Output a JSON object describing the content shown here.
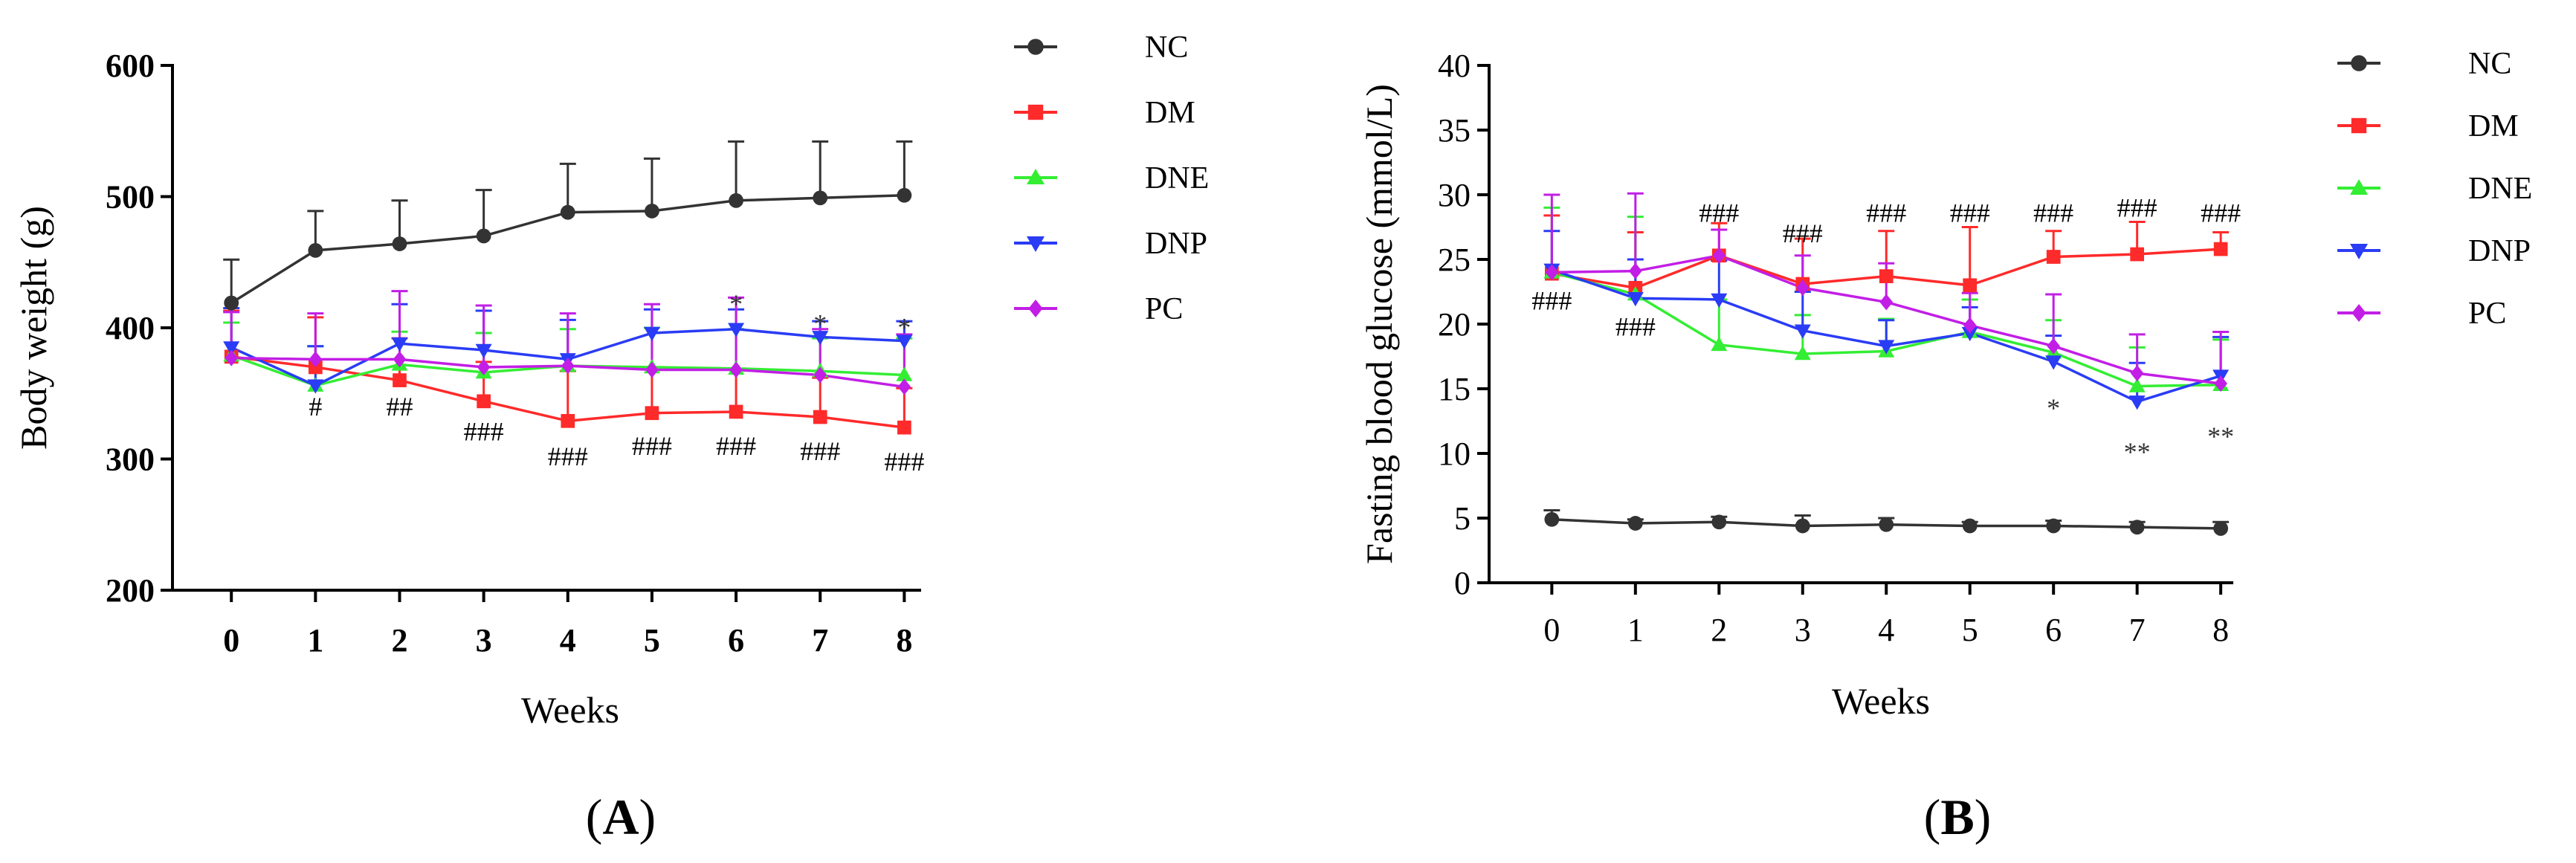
{
  "colors": {
    "NC": "#333333",
    "DM": "#ff2a2a",
    "DNE": "#33ee33",
    "DNP": "#2a3cf5",
    "PC": "#c21ee6"
  },
  "markers": {
    "NC": "circle",
    "DM": "square",
    "DNE": "triangle-up",
    "DNP": "triangle-down",
    "PC": "diamond"
  },
  "panels": {
    "A": {
      "prefix": "(",
      "letter": "A",
      "suffix": ")"
    },
    "B": {
      "prefix": "(",
      "letter": "B",
      "suffix": ")"
    }
  },
  "chart_data": [
    {
      "id": "A",
      "type": "line",
      "title": "",
      "xlabel": "Weeks",
      "ylabel": "Body weight (g)",
      "x": [
        0,
        1,
        2,
        3,
        4,
        5,
        6,
        7,
        8
      ],
      "xlim": [
        -0.7,
        8.2
      ],
      "ylim": [
        200,
        600
      ],
      "yticks": [
        200,
        300,
        400,
        500,
        600
      ],
      "legend": [
        "NC",
        "DM",
        "DNE",
        "DNP",
        "PC"
      ],
      "legend_position": "right",
      "series": [
        {
          "name": "NC",
          "values": [
            419,
            459,
            464,
            470,
            488,
            489,
            497,
            499,
            501
          ],
          "error": [
            33,
            30,
            33,
            35,
            37,
            40,
            45,
            43,
            41
          ]
        },
        {
          "name": "DM",
          "values": [
            378,
            370,
            360,
            344,
            329,
            335,
            336,
            332,
            324
          ],
          "error": [
            35,
            38,
            32,
            30,
            38,
            35,
            32,
            30,
            30
          ]
        },
        {
          "name": "DNE",
          "values": [
            379,
            356,
            372,
            366,
            371,
            370,
            369,
            367,
            364
          ],
          "error": [
            25,
            30,
            25,
            30,
            28,
            30,
            30,
            25,
            28
          ]
        },
        {
          "name": "DNP",
          "values": [
            385,
            356,
            388,
            383,
            376,
            396,
            399,
            393,
            390
          ],
          "error": [
            30,
            30,
            30,
            30,
            30,
            18,
            15,
            12,
            15
          ]
        },
        {
          "name": "PC",
          "values": [
            377,
            376,
            376,
            370,
            371,
            368,
            368,
            364,
            355
          ],
          "error": [
            35,
            35,
            52,
            47,
            40,
            50,
            55,
            35,
            40
          ]
        }
      ],
      "annotations": [
        {
          "x": 1,
          "y": 340,
          "text": "#"
        },
        {
          "x": 2,
          "y": 340,
          "text": "##"
        },
        {
          "x": 3,
          "y": 321,
          "text": "###"
        },
        {
          "x": 4,
          "y": 302,
          "text": "###"
        },
        {
          "x": 5,
          "y": 310,
          "text": "###"
        },
        {
          "x": 6,
          "y": 310,
          "text": "###"
        },
        {
          "x": 7,
          "y": 306,
          "text": "###"
        },
        {
          "x": 8,
          "y": 298,
          "text": "###"
        },
        {
          "x": 6,
          "y": 425,
          "text": "*"
        },
        {
          "x": 7,
          "y": 410,
          "text": "*"
        },
        {
          "x": 8,
          "y": 407,
          "text": "*"
        }
      ]
    },
    {
      "id": "B",
      "type": "line",
      "title": "",
      "xlabel": "Weeks",
      "ylabel": "Fasting blood glucose (mmol/L)",
      "x": [
        0,
        1,
        2,
        3,
        4,
        5,
        6,
        7,
        8
      ],
      "xlim": [
        -0.75,
        8.15
      ],
      "ylim": [
        0,
        40
      ],
      "yticks": [
        0,
        5,
        10,
        15,
        20,
        25,
        30,
        35,
        40
      ],
      "legend": [
        "NC",
        "DM",
        "DNE",
        "DNP",
        "PC"
      ],
      "legend_position": "right",
      "series": [
        {
          "name": "NC",
          "values": [
            4.9,
            4.6,
            4.7,
            4.4,
            4.5,
            4.4,
            4.4,
            4.3,
            4.2
          ],
          "error": [
            0.7,
            0.3,
            0.4,
            0.8,
            0.5,
            0.3,
            0.4,
            0.4,
            0.5
          ]
        },
        {
          "name": "DM",
          "values": [
            23.9,
            22.8,
            25.3,
            23.1,
            23.7,
            23.0,
            25.2,
            25.4,
            25.8
          ],
          "error": [
            4.5,
            4.3,
            2.5,
            3.5,
            3.5,
            4.5,
            2.0,
            2.5,
            1.3
          ]
        },
        {
          "name": "DNE",
          "values": [
            24.0,
            22.3,
            18.4,
            17.7,
            17.9,
            19.4,
            17.8,
            15.2,
            15.3
          ],
          "error": [
            5.0,
            6.0,
            3.5,
            3.0,
            2.5,
            2.5,
            2.5,
            3.0,
            3.5
          ]
        },
        {
          "name": "DNP",
          "values": [
            24.2,
            22.0,
            21.9,
            19.5,
            18.3,
            19.3,
            17.1,
            14.0,
            16.0
          ],
          "error": [
            3.0,
            3.0,
            3.0,
            3.0,
            2.0,
            2.0,
            2.0,
            3.0,
            3.0
          ]
        },
        {
          "name": "PC",
          "values": [
            24.0,
            24.1,
            25.3,
            22.8,
            21.7,
            19.9,
            18.3,
            16.2,
            15.4
          ],
          "error": [
            6.0,
            6.0,
            2.0,
            2.5,
            3.0,
            2.5,
            4.0,
            3.0,
            4.0
          ]
        }
      ],
      "annotations": [
        {
          "x": 0,
          "y": 21.8,
          "text": "###"
        },
        {
          "x": 1,
          "y": 19.8,
          "text": "###"
        },
        {
          "x": 2,
          "y": 28.6,
          "text": "###"
        },
        {
          "x": 3,
          "y": 27.0,
          "text": "###"
        },
        {
          "x": 4,
          "y": 28.6,
          "text": "###"
        },
        {
          "x": 5,
          "y": 28.6,
          "text": "###"
        },
        {
          "x": 6,
          "y": 28.6,
          "text": "###"
        },
        {
          "x": 7,
          "y": 29.0,
          "text": "###"
        },
        {
          "x": 8,
          "y": 28.6,
          "text": "###"
        },
        {
          "x": 6,
          "y": 14.2,
          "text": "*"
        },
        {
          "x": 7,
          "y": 10.8,
          "text": "**"
        },
        {
          "x": 8,
          "y": 12.0,
          "text": "**"
        }
      ]
    }
  ]
}
